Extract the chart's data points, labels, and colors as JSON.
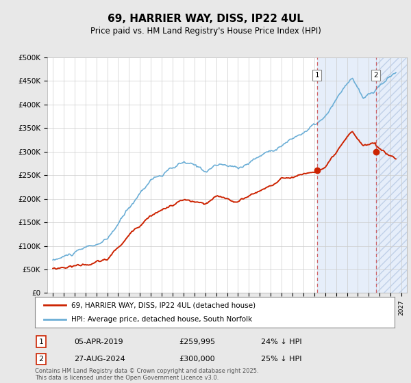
{
  "title": "69, HARRIER WAY, DISS, IP22 4UL",
  "subtitle": "Price paid vs. HM Land Registry's House Price Index (HPI)",
  "ylim": [
    0,
    500000
  ],
  "yticks": [
    0,
    50000,
    100000,
    150000,
    200000,
    250000,
    300000,
    350000,
    400000,
    450000,
    500000
  ],
  "ytick_labels": [
    "£0",
    "£50K",
    "£100K",
    "£150K",
    "£200K",
    "£250K",
    "£300K",
    "£350K",
    "£400K",
    "£450K",
    "£500K"
  ],
  "hpi_color": "#6baed6",
  "price_color": "#cc2200",
  "marker1_date": "05-APR-2019",
  "marker1_price": 259995,
  "marker1_label_price": "£259,995",
  "marker1_hpi_diff": "24% ↓ HPI",
  "marker1_x": 2019.26,
  "marker1_y": 259995,
  "marker2_date": "27-AUG-2024",
  "marker2_price": 300000,
  "marker2_label_price": "£300,000",
  "marker2_hpi_diff": "25% ↓ HPI",
  "marker2_x": 2024.65,
  "marker2_y": 300000,
  "legend_line1": "69, HARRIER WAY, DISS, IP22 4UL (detached house)",
  "legend_line2": "HPI: Average price, detached house, South Norfolk",
  "footer": "Contains HM Land Registry data © Crown copyright and database right 2025.\nThis data is licensed under the Open Government Licence v3.0.",
  "bg_color": "#e8e8e8",
  "plot_bg": "#ffffff",
  "grid_color": "#cccccc",
  "shade_color": "#dce8f8",
  "shade_start": 2019.26,
  "shade_end": 2027.5,
  "shade2_start": 2024.65,
  "shade2_end": 2027.5,
  "hatch_color": "#c8d8f0",
  "xmin": 1994.5,
  "xmax": 2027.5
}
